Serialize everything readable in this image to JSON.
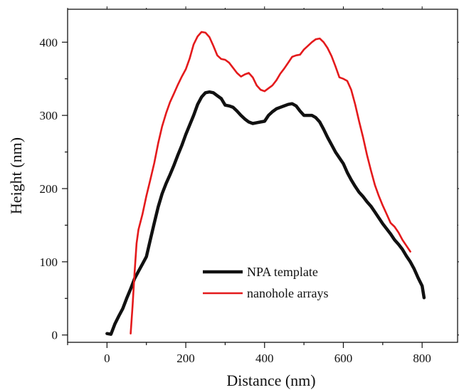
{
  "chart_data": {
    "type": "line",
    "title": "",
    "xlabel": "Distance (nm)",
    "ylabel": "Height (nm)",
    "xlim": [
      -100,
      890
    ],
    "ylim": [
      -10,
      445
    ],
    "x_ticks": [
      0,
      200,
      400,
      600,
      800
    ],
    "y_ticks": [
      0,
      100,
      200,
      300,
      400
    ],
    "grid": false,
    "legend_position": "lower-center",
    "series": [
      {
        "name": "NPA template",
        "color": "#111111",
        "points": [
          [
            0,
            2
          ],
          [
            10,
            1
          ],
          [
            20,
            15
          ],
          [
            30,
            26
          ],
          [
            40,
            36
          ],
          [
            50,
            50
          ],
          [
            60,
            63
          ],
          [
            70,
            77
          ],
          [
            80,
            87
          ],
          [
            90,
            97
          ],
          [
            100,
            107
          ],
          [
            110,
            130
          ],
          [
            120,
            153
          ],
          [
            130,
            175
          ],
          [
            140,
            193
          ],
          [
            150,
            207
          ],
          [
            160,
            219
          ],
          [
            170,
            232
          ],
          [
            180,
            246
          ],
          [
            190,
            259
          ],
          [
            200,
            274
          ],
          [
            210,
            287
          ],
          [
            220,
            300
          ],
          [
            230,
            315
          ],
          [
            240,
            325
          ],
          [
            250,
            331
          ],
          [
            260,
            332
          ],
          [
            270,
            331
          ],
          [
            280,
            327
          ],
          [
            290,
            323
          ],
          [
            300,
            314
          ],
          [
            310,
            313
          ],
          [
            320,
            311
          ],
          [
            330,
            306
          ],
          [
            340,
            300
          ],
          [
            350,
            295
          ],
          [
            360,
            291
          ],
          [
            370,
            289
          ],
          [
            380,
            290
          ],
          [
            390,
            291
          ],
          [
            400,
            292
          ],
          [
            410,
            300
          ],
          [
            420,
            305
          ],
          [
            430,
            309
          ],
          [
            440,
            311
          ],
          [
            450,
            313
          ],
          [
            460,
            315
          ],
          [
            470,
            316
          ],
          [
            480,
            313
          ],
          [
            490,
            306
          ],
          [
            500,
            300
          ],
          [
            510,
            300
          ],
          [
            520,
            300
          ],
          [
            530,
            297
          ],
          [
            540,
            291
          ],
          [
            550,
            281
          ],
          [
            560,
            270
          ],
          [
            570,
            260
          ],
          [
            580,
            250
          ],
          [
            590,
            242
          ],
          [
            600,
            234
          ],
          [
            610,
            222
          ],
          [
            620,
            212
          ],
          [
            630,
            203
          ],
          [
            640,
            195
          ],
          [
            650,
            189
          ],
          [
            660,
            182
          ],
          [
            670,
            176
          ],
          [
            680,
            168
          ],
          [
            690,
            160
          ],
          [
            700,
            152
          ],
          [
            710,
            145
          ],
          [
            720,
            138
          ],
          [
            730,
            130
          ],
          [
            740,
            124
          ],
          [
            750,
            117
          ],
          [
            760,
            108
          ],
          [
            770,
            100
          ],
          [
            780,
            90
          ],
          [
            790,
            78
          ],
          [
            800,
            67
          ],
          [
            805,
            51
          ]
        ]
      },
      {
        "name": "nanohole arrays",
        "color": "#e41a1c",
        "points": [
          [
            60,
            2
          ],
          [
            65,
            40
          ],
          [
            70,
            85
          ],
          [
            75,
            125
          ],
          [
            80,
            144
          ],
          [
            90,
            165
          ],
          [
            100,
            190
          ],
          [
            110,
            212
          ],
          [
            120,
            235
          ],
          [
            130,
            262
          ],
          [
            140,
            285
          ],
          [
            150,
            303
          ],
          [
            160,
            318
          ],
          [
            170,
            330
          ],
          [
            180,
            342
          ],
          [
            190,
            353
          ],
          [
            200,
            363
          ],
          [
            210,
            378
          ],
          [
            220,
            397
          ],
          [
            230,
            408
          ],
          [
            240,
            414
          ],
          [
            250,
            413
          ],
          [
            260,
            407
          ],
          [
            270,
            395
          ],
          [
            280,
            382
          ],
          [
            290,
            377
          ],
          [
            300,
            376
          ],
          [
            310,
            372
          ],
          [
            320,
            365
          ],
          [
            330,
            358
          ],
          [
            340,
            353
          ],
          [
            350,
            356
          ],
          [
            360,
            358
          ],
          [
            370,
            352
          ],
          [
            380,
            341
          ],
          [
            390,
            335
          ],
          [
            400,
            333
          ],
          [
            410,
            337
          ],
          [
            420,
            341
          ],
          [
            430,
            348
          ],
          [
            440,
            357
          ],
          [
            450,
            364
          ],
          [
            460,
            372
          ],
          [
            470,
            380
          ],
          [
            480,
            382
          ],
          [
            490,
            383
          ],
          [
            500,
            390
          ],
          [
            510,
            395
          ],
          [
            520,
            400
          ],
          [
            530,
            404
          ],
          [
            540,
            405
          ],
          [
            550,
            400
          ],
          [
            560,
            392
          ],
          [
            570,
            381
          ],
          [
            580,
            367
          ],
          [
            590,
            352
          ],
          [
            600,
            350
          ],
          [
            610,
            347
          ],
          [
            620,
            335
          ],
          [
            630,
            315
          ],
          [
            640,
            292
          ],
          [
            650,
            270
          ],
          [
            660,
            246
          ],
          [
            670,
            225
          ],
          [
            680,
            205
          ],
          [
            690,
            190
          ],
          [
            700,
            177
          ],
          [
            710,
            165
          ],
          [
            720,
            153
          ],
          [
            730,
            148
          ],
          [
            740,
            140
          ],
          [
            750,
            130
          ],
          [
            760,
            122
          ],
          [
            770,
            114
          ]
        ]
      }
    ]
  }
}
